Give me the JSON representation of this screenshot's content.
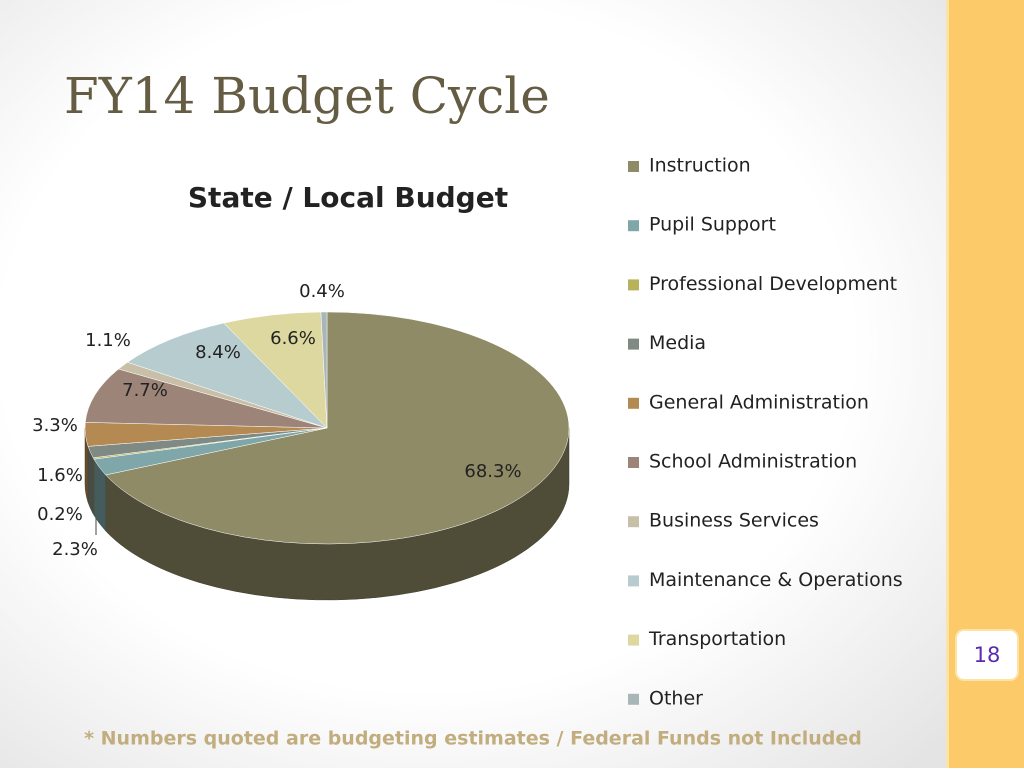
{
  "slide": {
    "title": "FY14 Budget Cycle",
    "page_number": "18",
    "footnote": "* Numbers quoted are budgeting estimates / Federal Funds not Included"
  },
  "chart_data": {
    "type": "pie3d",
    "title": "State / Local Budget",
    "categories": [
      "Instruction",
      "Pupil Support",
      "Professional Development",
      "Media",
      "General Administration",
      "School Administration",
      "Business Services",
      "Maintenance & Operations",
      "Transportation",
      "Other"
    ],
    "values": [
      68.3,
      2.3,
      0.2,
      1.6,
      3.3,
      7.7,
      1.1,
      8.4,
      6.6,
      0.4
    ],
    "value_labels": [
      "68.3%",
      "2.3%",
      "0.2%",
      "1.6%",
      "3.3%",
      "7.7%",
      "1.1%",
      "8.4%",
      "6.6%",
      "0.4%"
    ],
    "colors": [
      "#8f8b66",
      "#7fa6a8",
      "#b8b25a",
      "#7f8a84",
      "#b58a52",
      "#9c8478",
      "#c8bfa8",
      "#b7ccce",
      "#ddd8a0",
      "#a9b6b8"
    ],
    "legend": "right"
  }
}
